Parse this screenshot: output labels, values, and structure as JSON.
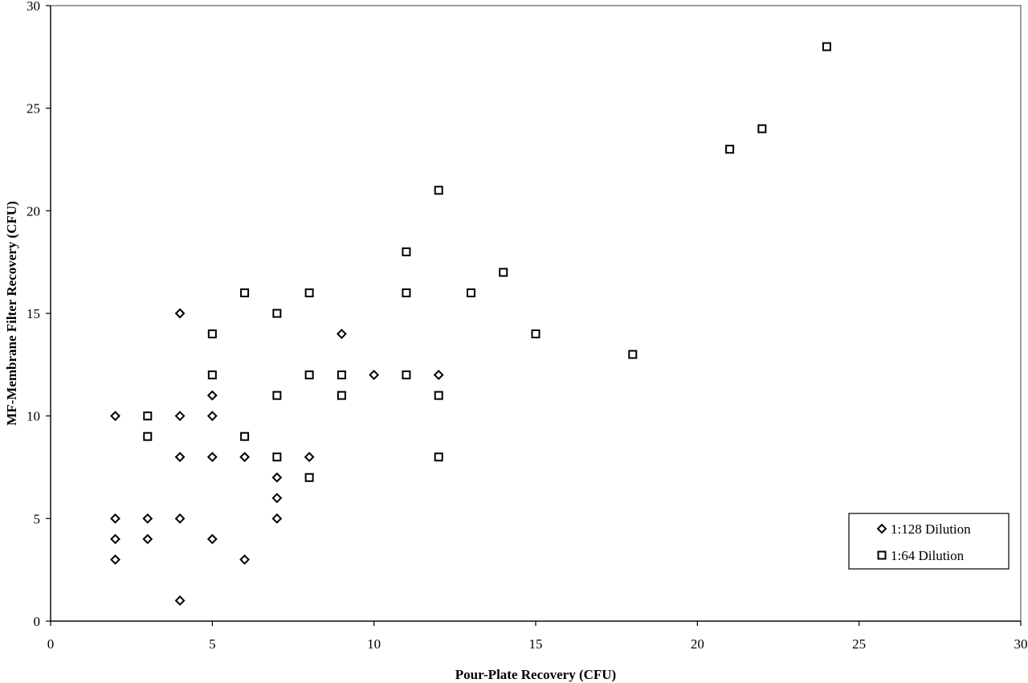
{
  "chart_data": {
    "type": "scatter",
    "title": "",
    "xlabel": "Pour-Plate Recovery (CFU)",
    "ylabel": "MF-Membrane Filter Recovery (CFU)",
    "xlim": [
      0,
      30
    ],
    "ylim": [
      0,
      30
    ],
    "xticks": [
      0,
      5,
      10,
      15,
      20,
      25,
      30
    ],
    "yticks": [
      0,
      5,
      10,
      15,
      20,
      25,
      30
    ],
    "grid": false,
    "legend_position": "lower-right",
    "series": [
      {
        "name": "1:128 Dilution",
        "marker": "diamond",
        "color": "#000000",
        "points": [
          [
            2,
            10
          ],
          [
            2,
            5
          ],
          [
            2,
            4
          ],
          [
            2,
            3
          ],
          [
            3,
            5
          ],
          [
            3,
            4
          ],
          [
            4,
            15
          ],
          [
            4,
            10
          ],
          [
            4,
            8
          ],
          [
            4,
            5
          ],
          [
            4,
            1
          ],
          [
            5,
            11
          ],
          [
            5,
            10
          ],
          [
            5,
            8
          ],
          [
            5,
            4
          ],
          [
            6,
            8
          ],
          [
            6,
            3
          ],
          [
            7,
            7
          ],
          [
            7,
            6
          ],
          [
            7,
            5
          ],
          [
            8,
            8
          ],
          [
            9,
            14
          ],
          [
            10,
            12
          ],
          [
            12,
            12
          ]
        ]
      },
      {
        "name": "1:64 Dilution",
        "marker": "square",
        "color": "#000000",
        "points": [
          [
            3,
            10
          ],
          [
            3,
            9
          ],
          [
            5,
            14
          ],
          [
            5,
            12
          ],
          [
            6,
            16
          ],
          [
            6,
            9
          ],
          [
            7,
            15
          ],
          [
            7,
            11
          ],
          [
            7,
            8
          ],
          [
            8,
            16
          ],
          [
            8,
            12
          ],
          [
            8,
            7
          ],
          [
            9,
            12
          ],
          [
            9,
            11
          ],
          [
            11,
            18
          ],
          [
            11,
            16
          ],
          [
            11,
            12
          ],
          [
            12,
            21
          ],
          [
            12,
            11
          ],
          [
            12,
            8
          ],
          [
            13,
            16
          ],
          [
            14,
            17
          ],
          [
            15,
            14
          ],
          [
            18,
            13
          ],
          [
            21,
            23
          ],
          [
            22,
            24
          ],
          [
            24,
            28
          ]
        ]
      }
    ]
  }
}
